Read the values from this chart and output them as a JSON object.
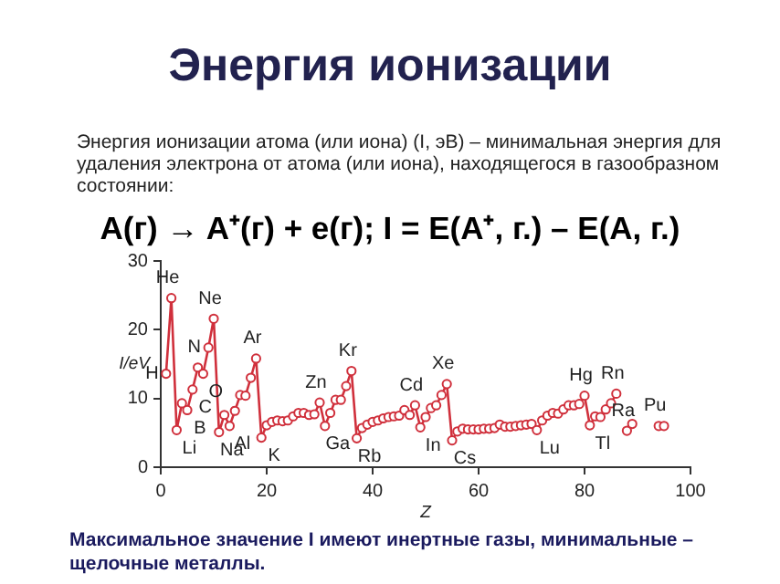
{
  "chart_data": {
    "type": "line",
    "title": "Энергия ионизации",
    "subtitle": "Энергия ионизации атома (или иона) (I, эВ) – минимальная энергия для удаления электрона от атома (или иона), находящегося в газообразном состоянии:",
    "xlabel": "Z",
    "ylabel": "I/eV",
    "x": [
      1,
      2,
      3,
      4,
      5,
      6,
      7,
      8,
      9,
      10,
      11,
      12,
      13,
      14,
      15,
      16,
      17,
      18,
      19,
      20,
      21,
      22,
      23,
      24,
      25,
      26,
      27,
      28,
      29,
      30,
      31,
      32,
      33,
      34,
      35,
      36,
      37,
      38,
      39,
      40,
      41,
      42,
      43,
      44,
      45,
      46,
      47,
      48,
      49,
      50,
      51,
      52,
      53,
      54,
      55,
      56,
      57,
      58,
      59,
      60,
      61,
      62,
      63,
      64,
      65,
      66,
      67,
      68,
      69,
      70,
      71,
      72,
      73,
      74,
      75,
      76,
      77,
      78,
      79,
      80,
      81,
      82,
      83,
      84,
      85,
      86
    ],
    "series": [
      {
        "color": "#d0303c",
        "values": [
          13.6,
          24.6,
          5.4,
          9.3,
          8.3,
          11.3,
          14.5,
          13.6,
          17.4,
          21.6,
          5.1,
          7.6,
          6.0,
          8.2,
          10.5,
          10.4,
          13.0,
          15.8,
          4.3,
          6.1,
          6.6,
          6.8,
          6.7,
          6.8,
          7.4,
          7.9,
          7.9,
          7.6,
          7.7,
          9.4,
          6.0,
          7.9,
          9.8,
          9.8,
          11.8,
          14.0,
          4.2,
          5.7,
          6.2,
          6.6,
          6.8,
          7.1,
          7.3,
          7.4,
          7.5,
          8.3,
          7.6,
          9.0,
          5.8,
          7.3,
          8.6,
          9.0,
          10.5,
          12.1,
          3.9,
          5.2,
          5.6,
          5.5,
          5.5,
          5.5,
          5.6,
          5.6,
          5.7,
          6.2,
          5.9,
          5.9,
          6.0,
          6.1,
          6.2,
          6.3,
          5.4,
          6.8,
          7.5,
          7.9,
          7.8,
          8.4,
          9.0,
          9.0,
          9.2,
          10.4,
          6.1,
          7.4,
          7.3,
          8.4,
          9.3,
          10.7
        ]
      },
      {
        "type": "scatter",
        "color": "#d0303c",
        "x": [
          88,
          89,
          94,
          95
        ],
        "values": [
          5.3,
          6.3,
          6.0,
          6.0
        ]
      }
    ],
    "xlim": [
      0,
      100
    ],
    "xticks": [
      0,
      20,
      40,
      60,
      80,
      100
    ],
    "ylim": [
      0,
      30
    ],
    "yticks": [
      0,
      10,
      20,
      30
    ],
    "grid": false,
    "marker": "circle",
    "legend": false,
    "annotations": [
      {
        "text": "H",
        "x": 1,
        "y": 13.6
      },
      {
        "text": "He",
        "x": 2,
        "y": 24.6
      },
      {
        "text": "Li",
        "x": 3,
        "y": 5.4
      },
      {
        "text": "B",
        "x": 5,
        "y": 8.3
      },
      {
        "text": "C",
        "x": 6,
        "y": 11.3
      },
      {
        "text": "N",
        "x": 7,
        "y": 14.5
      },
      {
        "text": "O",
        "x": 8,
        "y": 13.6
      },
      {
        "text": "Ne",
        "x": 10,
        "y": 21.6
      },
      {
        "text": "Na",
        "x": 11,
        "y": 5.1
      },
      {
        "text": "Al",
        "x": 13,
        "y": 6.0
      },
      {
        "text": "Ar",
        "x": 18,
        "y": 15.8
      },
      {
        "text": "K",
        "x": 19,
        "y": 4.3
      },
      {
        "text": "Zn",
        "x": 30,
        "y": 9.4
      },
      {
        "text": "Ga",
        "x": 31,
        "y": 6.0
      },
      {
        "text": "Kr",
        "x": 36,
        "y": 14.0
      },
      {
        "text": "Rb",
        "x": 37,
        "y": 4.2
      },
      {
        "text": "Cd",
        "x": 48,
        "y": 9.0
      },
      {
        "text": "In",
        "x": 49,
        "y": 5.8
      },
      {
        "text": "Xe",
        "x": 54,
        "y": 12.1
      },
      {
        "text": "Cs",
        "x": 55,
        "y": 3.9
      },
      {
        "text": "Lu",
        "x": 71,
        "y": 5.4
      },
      {
        "text": "Hg",
        "x": 80,
        "y": 10.4
      },
      {
        "text": "Tl",
        "x": 81,
        "y": 6.1
      },
      {
        "text": "Rn",
        "x": 86,
        "y": 10.7
      },
      {
        "text": "Ra",
        "x": 88,
        "y": 5.3
      },
      {
        "text": "Pu",
        "x": 94,
        "y": 6.0
      },
      "A(г) → A⁺(г)  +  e(г); I = E(A⁺, г.) – E(A, г.)",
      "Максимальное значение I имеют инертные газы, минимальные – щелочные металлы."
    ]
  }
}
